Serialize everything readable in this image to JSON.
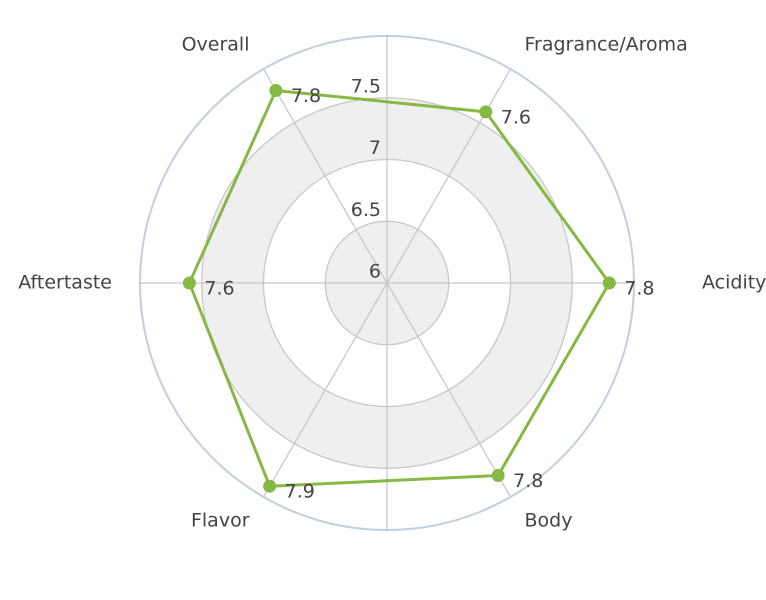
{
  "chart_data": {
    "type": "radar",
    "categories": [
      "Fragrance/Aroma",
      "Acidity",
      "Body",
      "Flavor",
      "Aftertaste",
      "Overall"
    ],
    "values": [
      7.6,
      7.8,
      7.8,
      7.9,
      7.6,
      7.8
    ],
    "color": "#86b944",
    "rlim": [
      6,
      8
    ],
    "rticks": [
      6,
      6.5,
      7,
      7.5
    ],
    "grid": true
  }
}
